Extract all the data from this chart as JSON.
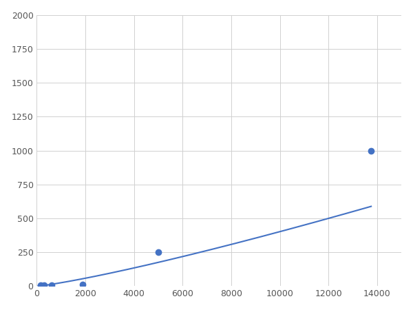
{
  "x": [
    156.25,
    312.5,
    625,
    1875,
    5000,
    13750
  ],
  "y": [
    5,
    8,
    10,
    15,
    250,
    1000
  ],
  "line_color": "#4472C4",
  "marker_color": "#4472C4",
  "marker_size": 6,
  "line_width": 1.5,
  "xlim": [
    0,
    15000
  ],
  "ylim": [
    0,
    2000
  ],
  "xticks": [
    0,
    2000,
    4000,
    6000,
    8000,
    10000,
    12000,
    14000
  ],
  "yticks": [
    0,
    250,
    500,
    750,
    1000,
    1250,
    1500,
    1750,
    2000
  ],
  "grid_color": "#d0d0d0",
  "background_color": "#ffffff",
  "fig_background": "#ffffff"
}
